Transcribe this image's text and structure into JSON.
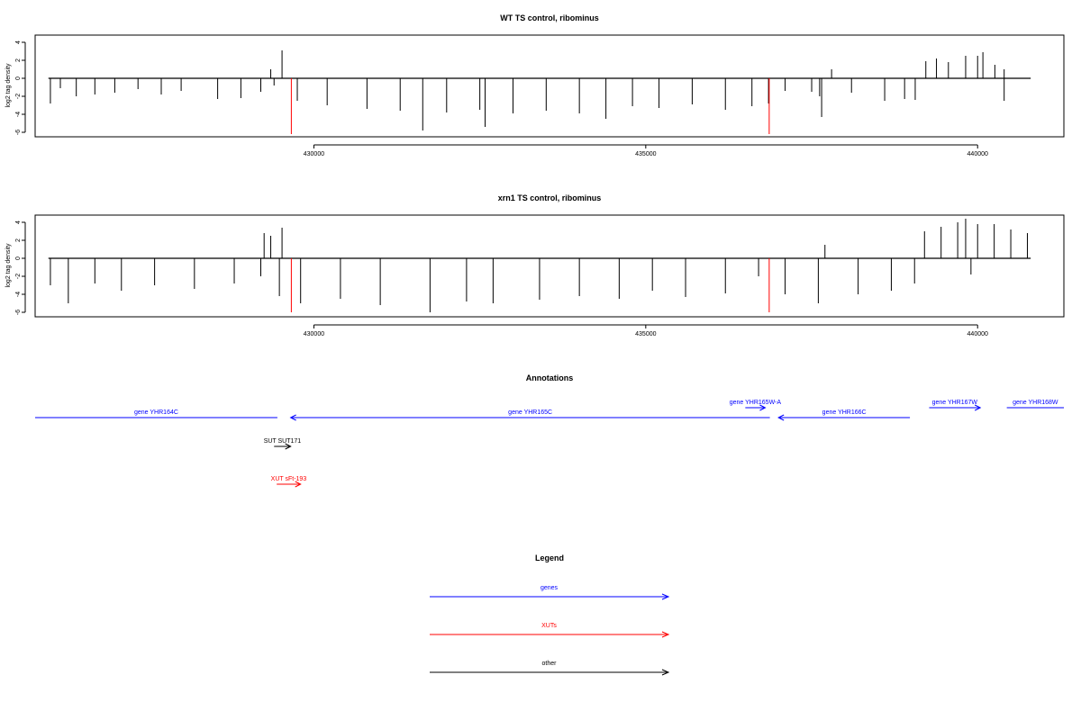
{
  "colors": {
    "gene": "#0000ff",
    "xut": "#ff0000",
    "other": "#000000",
    "bar": "#000000",
    "highlight": "#ff0000"
  },
  "chart_data": [
    {
      "type": "bar",
      "title": "WT TS control, ribominus",
      "ylabel": "log2 tag density",
      "xlim": [
        425800,
        441300
      ],
      "ylim": [
        -6.5,
        4.8
      ],
      "xticks": [
        430000,
        435000,
        440000
      ],
      "yticks": [
        -6,
        -4,
        -2,
        0,
        2,
        4
      ],
      "data_start": 426000,
      "data_end": 440800,
      "grid": false,
      "series": [
        {
          "values": [
            {
              "x": 426030,
              "y": -2.8
            },
            {
              "x": 426180,
              "y": -1.1
            },
            {
              "x": 426420,
              "y": -2.0
            },
            {
              "x": 426700,
              "y": -1.8
            },
            {
              "x": 427000,
              "y": -1.6
            },
            {
              "x": 427350,
              "y": -1.2
            },
            {
              "x": 427700,
              "y": -1.8
            },
            {
              "x": 428000,
              "y": -1.4
            },
            {
              "x": 428550,
              "y": -2.3
            },
            {
              "x": 428900,
              "y": -2.2
            },
            {
              "x": 429200,
              "y": -1.5
            },
            {
              "x": 429400,
              "y": -0.8
            },
            {
              "x": 429350,
              "y": 1.0
            },
            {
              "x": 429520,
              "y": 3.1
            },
            {
              "x": 429750,
              "y": -2.5
            },
            {
              "x": 430200,
              "y": -3.0
            },
            {
              "x": 430800,
              "y": -3.4
            },
            {
              "x": 431300,
              "y": -3.6
            },
            {
              "x": 431640,
              "y": -5.8
            },
            {
              "x": 432000,
              "y": -3.8
            },
            {
              "x": 432500,
              "y": -3.5
            },
            {
              "x": 432580,
              "y": -5.4
            },
            {
              "x": 433000,
              "y": -3.9
            },
            {
              "x": 433500,
              "y": -3.6
            },
            {
              "x": 434000,
              "y": -3.9
            },
            {
              "x": 434400,
              "y": -4.5
            },
            {
              "x": 434800,
              "y": -3.1
            },
            {
              "x": 435200,
              "y": -3.3
            },
            {
              "x": 435700,
              "y": -2.9
            },
            {
              "x": 436200,
              "y": -3.5
            },
            {
              "x": 436600,
              "y": -3.1
            },
            {
              "x": 436850,
              "y": -2.8
            },
            {
              "x": 437100,
              "y": -1.4
            },
            {
              "x": 437500,
              "y": -1.5
            },
            {
              "x": 437620,
              "y": -2.0
            },
            {
              "x": 437800,
              "y": 1.0
            },
            {
              "x": 437650,
              "y": -4.3
            },
            {
              "x": 438100,
              "y": -1.6
            },
            {
              "x": 438600,
              "y": -2.5
            },
            {
              "x": 438900,
              "y": -2.3
            },
            {
              "x": 439060,
              "y": -2.4
            },
            {
              "x": 439220,
              "y": 1.9
            },
            {
              "x": 439380,
              "y": 2.2
            },
            {
              "x": 439560,
              "y": 1.8
            },
            {
              "x": 439820,
              "y": 2.5
            },
            {
              "x": 440000,
              "y": 2.5
            },
            {
              "x": 440080,
              "y": 2.9
            },
            {
              "x": 440260,
              "y": 1.5
            },
            {
              "x": 440400,
              "y": 1.0
            },
            {
              "x": 440400,
              "y": -2.5
            }
          ]
        },
        {
          "name": "",
          "values": [
            {
              "x": 429660,
              "y": -6.2
            },
            {
              "x": 436860,
              "y": -6.2
            }
          ]
        }
      ]
    },
    {
      "type": "bar",
      "title": "xrn1 TS control, ribominus",
      "ylabel": "log2 tag density",
      "xlim": [
        425800,
        441300
      ],
      "ylim": [
        -6.5,
        4.8
      ],
      "xticks": [
        430000,
        435000,
        440000
      ],
      "yticks": [
        -6,
        -4,
        -2,
        0,
        2,
        4
      ],
      "data_start": 426000,
      "data_end": 440800,
      "grid": false,
      "series": [
        {
          "values": [
            {
              "x": 426030,
              "y": -3.0
            },
            {
              "x": 426300,
              "y": -5.0
            },
            {
              "x": 426700,
              "y": -2.8
            },
            {
              "x": 427100,
              "y": -3.6
            },
            {
              "x": 427600,
              "y": -3.0
            },
            {
              "x": 428200,
              "y": -3.4
            },
            {
              "x": 428800,
              "y": -2.8
            },
            {
              "x": 429200,
              "y": -2.0
            },
            {
              "x": 429250,
              "y": 2.8
            },
            {
              "x": 429350,
              "y": 2.5
            },
            {
              "x": 429520,
              "y": 3.4
            },
            {
              "x": 429480,
              "y": -4.2
            },
            {
              "x": 429800,
              "y": -5.0
            },
            {
              "x": 430400,
              "y": -4.5
            },
            {
              "x": 431000,
              "y": -5.2
            },
            {
              "x": 431750,
              "y": -6.0
            },
            {
              "x": 432300,
              "y": -4.8
            },
            {
              "x": 432700,
              "y": -5.0
            },
            {
              "x": 433400,
              "y": -4.6
            },
            {
              "x": 434000,
              "y": -4.2
            },
            {
              "x": 434600,
              "y": -4.5
            },
            {
              "x": 435100,
              "y": -3.6
            },
            {
              "x": 435600,
              "y": -4.3
            },
            {
              "x": 436200,
              "y": -3.9
            },
            {
              "x": 436700,
              "y": -2.0
            },
            {
              "x": 437100,
              "y": -4.0
            },
            {
              "x": 437600,
              "y": -5.0
            },
            {
              "x": 437700,
              "y": 1.5
            },
            {
              "x": 438200,
              "y": -4.0
            },
            {
              "x": 438700,
              "y": -3.6
            },
            {
              "x": 439050,
              "y": -2.8
            },
            {
              "x": 439200,
              "y": 3.0
            },
            {
              "x": 439450,
              "y": 3.5
            },
            {
              "x": 439700,
              "y": 4.0
            },
            {
              "x": 439820,
              "y": 4.4
            },
            {
              "x": 440000,
              "y": 3.8
            },
            {
              "x": 440250,
              "y": 3.8
            },
            {
              "x": 440500,
              "y": 3.2
            },
            {
              "x": 440750,
              "y": 2.8
            },
            {
              "x": 439900,
              "y": -1.8
            }
          ]
        },
        {
          "name": "",
          "values": [
            {
              "x": 429660,
              "y": -6.0
            },
            {
              "x": 436860,
              "y": -6.0
            }
          ]
        }
      ]
    }
  ],
  "annotations": {
    "title": "Annotations",
    "items": [
      {
        "label": "gene YHR164C",
        "type": "gene",
        "strand": "-",
        "start": 425800,
        "end": 429450,
        "row": 1,
        "arrow": false
      },
      {
        "label": "gene YHR165C",
        "type": "gene",
        "strand": "-",
        "start": 429650,
        "end": 436870,
        "row": 1,
        "arrow": true
      },
      {
        "label": "gene YHR165W-A",
        "type": "gene",
        "strand": "+",
        "start": 436500,
        "end": 436800,
        "row": 0,
        "arrow": true
      },
      {
        "label": "gene YHR166C",
        "type": "gene",
        "strand": "-",
        "start": 437000,
        "end": 438980,
        "row": 1,
        "arrow": true
      },
      {
        "label": "gene YHR167W",
        "type": "gene",
        "strand": "+",
        "start": 439270,
        "end": 440040,
        "row": 0,
        "arrow": true
      },
      {
        "label": "gene YHR168W",
        "type": "gene",
        "strand": "+",
        "start": 440440,
        "end": 441300,
        "row": 0,
        "arrow": false
      },
      {
        "label": "SUT SUT171",
        "type": "other",
        "strand": "+",
        "start": 429400,
        "end": 429650,
        "row": 2,
        "arrow": true
      },
      {
        "label": "XUT sFt-193",
        "type": "xut",
        "strand": "+",
        "start": 429440,
        "end": 429800,
        "row": 3,
        "arrow": true
      }
    ]
  },
  "legend": {
    "title": "Legend",
    "items": [
      {
        "label": "genes",
        "type": "gene"
      },
      {
        "label": "XUTs",
        "type": "xut"
      },
      {
        "label": "other",
        "type": "other"
      }
    ]
  }
}
